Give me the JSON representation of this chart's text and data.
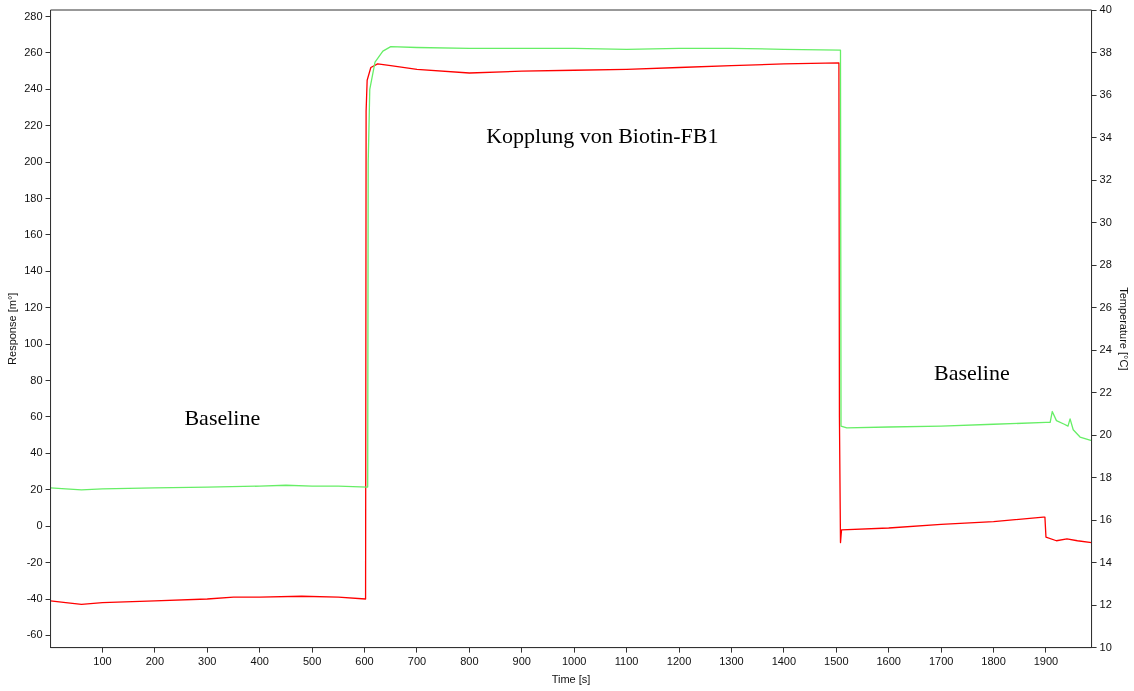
{
  "chart_data": {
    "type": "line",
    "xlabel": "Time [s]",
    "ylabel": "Response [m°]",
    "y2label": "Temperature [°C]",
    "xlim": [
      1,
      1987
    ],
    "xticks": [
      100,
      200,
      300,
      400,
      500,
      600,
      700,
      800,
      900,
      1000,
      1100,
      1200,
      1300,
      1400,
      1500,
      1600,
      1700,
      1800,
      1900
    ],
    "ylim": [
      -66.7,
      283.6
    ],
    "yticks": [
      -60,
      -40,
      -20,
      0,
      20,
      40,
      60,
      80,
      100,
      120,
      140,
      160,
      180,
      200,
      220,
      240,
      260,
      280
    ],
    "y2lim": [
      10,
      40
    ],
    "y2ticks": [
      10,
      12,
      14,
      16,
      18,
      20,
      22,
      24,
      26,
      28,
      30,
      32,
      34,
      36,
      38,
      40
    ],
    "grid": false,
    "legend": false,
    "marker": "none",
    "line_style": "solid",
    "series": [
      {
        "color": "#66ee66",
        "x": [
          1,
          30,
          60,
          100,
          200,
          300,
          400,
          450,
          500,
          550,
          606,
          607,
          610,
          620,
          635,
          650,
          700,
          800,
          900,
          1000,
          1100,
          1200,
          1300,
          1400,
          1508,
          1509,
          1520,
          1600,
          1700,
          1800,
          1900,
          1908,
          1912,
          1920,
          1935,
          1942,
          1946,
          1952,
          1965,
          1987
        ],
        "values": [
          21,
          20.5,
          20,
          20.5,
          21,
          21.5,
          22,
          22.5,
          22,
          22,
          21.5,
          200,
          240,
          255,
          261,
          263.5,
          263,
          262.5,
          262.5,
          262.5,
          262,
          262.5,
          262.5,
          262,
          261.5,
          55,
          54,
          54.5,
          55,
          56,
          57,
          57,
          63,
          58,
          56,
          55,
          59,
          53,
          49,
          47
        ]
      },
      {
        "color": "#ff0000",
        "x": [
          1,
          30,
          60,
          100,
          200,
          300,
          350,
          400,
          480,
          550,
          602,
          603,
          605,
          612,
          625,
          650,
          700,
          800,
          900,
          1000,
          1100,
          1200,
          1300,
          1400,
          1505,
          1506,
          1508,
          1510,
          1600,
          1700,
          1800,
          1895,
          1898,
          1900,
          1920,
          1940,
          1960,
          1987
        ],
        "values": [
          -41,
          -42,
          -43,
          -42,
          -41,
          -40,
          -39,
          -39,
          -38.5,
          -39,
          -40,
          228,
          245,
          252,
          254,
          253,
          251,
          249,
          250,
          250.5,
          251,
          252,
          253,
          254,
          254.5,
          60,
          -9,
          -2,
          -1,
          1,
          2.5,
          5,
          5,
          -6,
          -8,
          -7,
          -8,
          -9
        ]
      }
    ],
    "annotations": [
      "Baseline",
      "Kopplung von Biotin-FB1",
      "Baseline"
    ]
  }
}
